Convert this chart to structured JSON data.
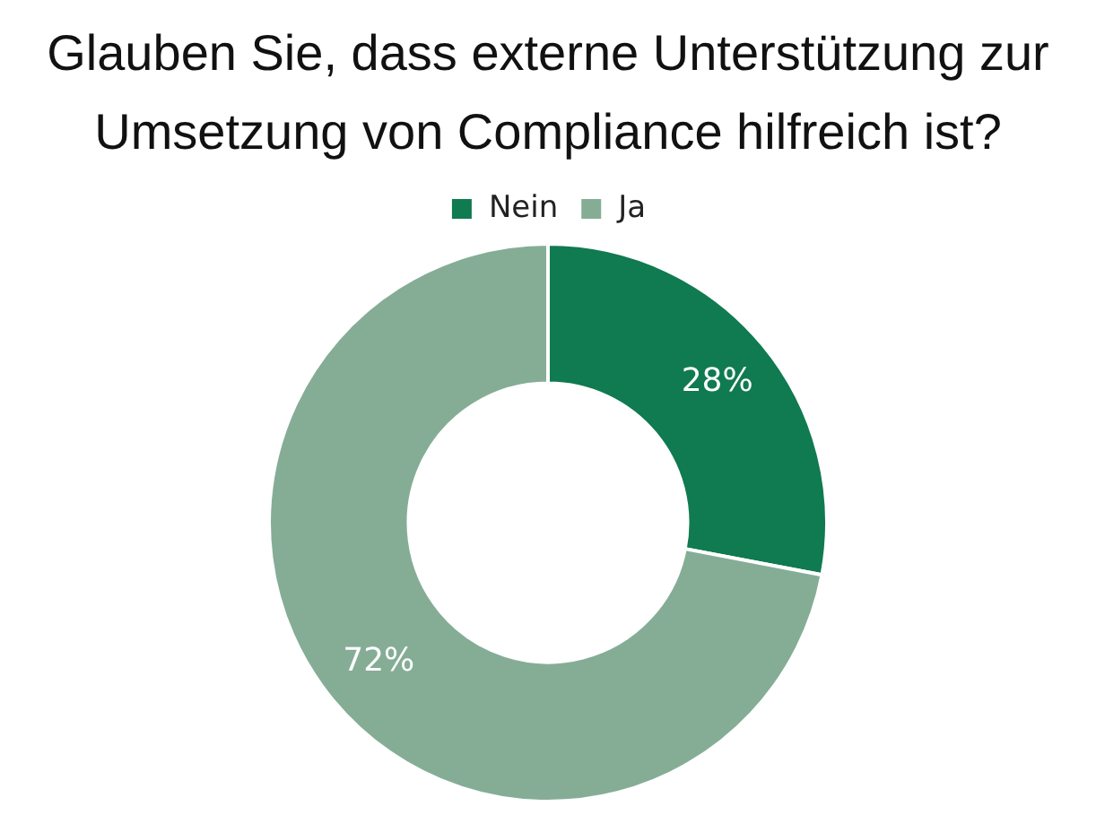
{
  "chart_data": {
    "type": "donut",
    "title": "Glauben Sie, dass externe Unterstützung zur Umsetzung von Compliance hilfreich ist?",
    "categories": [
      "Nein",
      "Ja"
    ],
    "values": [
      28,
      72
    ],
    "colors": [
      "#107a50",
      "#85ad96"
    ],
    "value_labels": [
      "28%",
      "72%"
    ],
    "legend": "top"
  }
}
